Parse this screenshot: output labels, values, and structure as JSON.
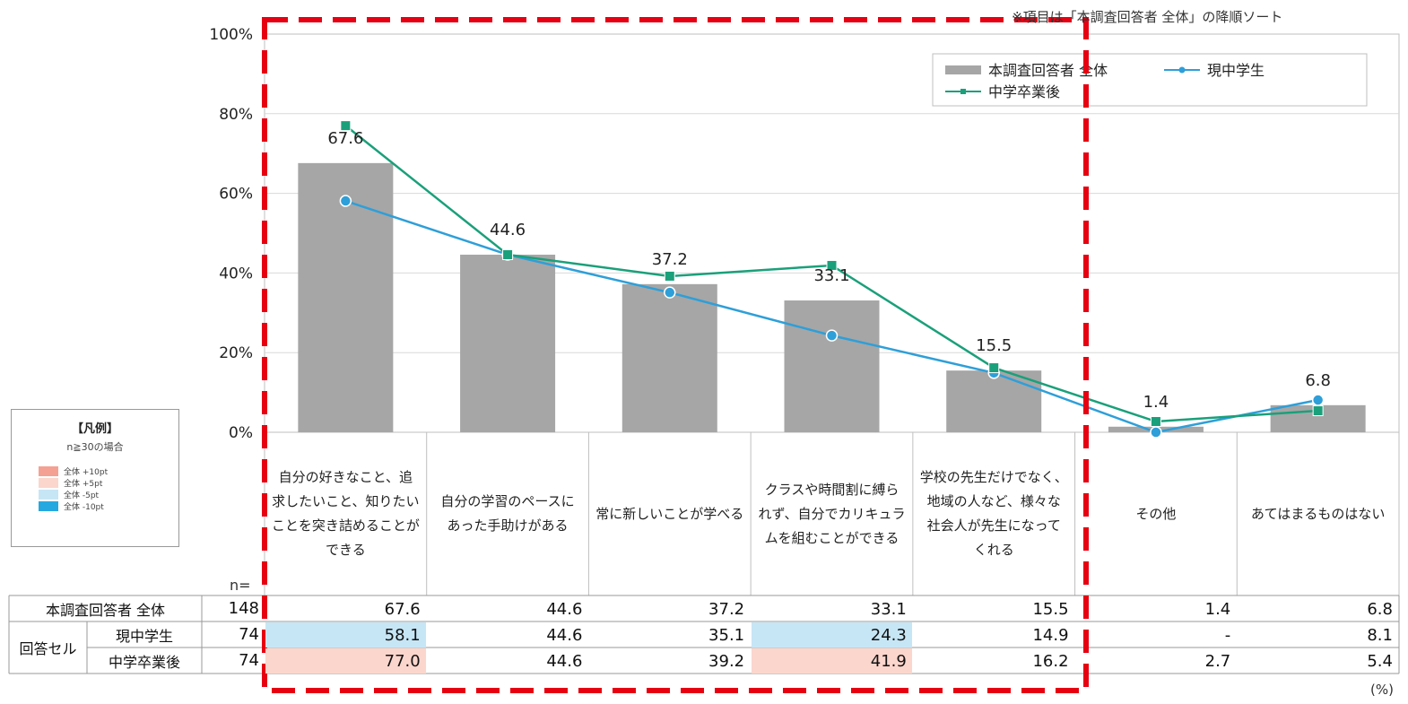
{
  "note": "※項目は「本調査回答者 全体」の降順ソート",
  "unit_label": "(%)",
  "n_label": "n=",
  "guide": {
    "title": "【凡例】",
    "condition": "n≧30の場合",
    "rows": [
      {
        "text": "全体 +10pt",
        "color": "#f4a193"
      },
      {
        "text": "全体 +5pt",
        "color": "#fbd6cd"
      },
      {
        "text": "全体 -5pt",
        "color": "#c6e6f5"
      },
      {
        "text": "全体 -10pt",
        "color": "#25a8e0"
      }
    ]
  },
  "chart_data": {
    "type": "bar",
    "categories": [
      "自分の好きなこと、追\n求したいこと、知りたい\nことを突き詰めることが\nできる",
      "自分の学習のペースに\nあった手助けがある",
      "常に新しいことが学べる",
      "クラスや時間割に縛ら\nれず、自分でカリキュラ\nムを組むことができる",
      "学校の先生だけでなく、\n地域の人など、様々な\n社会人が先生になって\nくれる",
      "その他",
      "あてはまるものはない"
    ],
    "yticks": [
      "100%",
      "80%",
      "60%",
      "40%",
      "20%",
      "0%"
    ],
    "ylim": [
      0,
      100
    ],
    "series": [
      {
        "name": "本調査回答者 全体",
        "kind": "bar",
        "color": "#a6a6a6",
        "values": [
          67.6,
          44.6,
          37.2,
          33.1,
          15.5,
          1.4,
          6.8
        ],
        "labels": [
          "67.6",
          "44.6",
          "37.2",
          "33.1",
          "15.5",
          "1.4",
          "6.8"
        ]
      },
      {
        "name": "現中学生",
        "kind": "line",
        "color": "#2e9fd8",
        "marker": "circle",
        "values": [
          58.1,
          44.6,
          35.1,
          24.3,
          14.9,
          0,
          8.1
        ]
      },
      {
        "name": "中学卒業後",
        "kind": "line",
        "color": "#1aa07a",
        "marker": "square",
        "values": [
          77.0,
          44.6,
          39.2,
          41.9,
          16.2,
          2.7,
          5.4
        ]
      }
    ]
  },
  "table": {
    "rows": [
      {
        "group": "",
        "label": "本調査回答者 全体",
        "n": "148",
        "cells": [
          "67.6",
          "44.6",
          "37.2",
          "33.1",
          "15.5",
          "1.4",
          "6.8"
        ],
        "fills": [
          "",
          "",
          "",
          "",
          "",
          "",
          ""
        ]
      },
      {
        "group": "回答セル",
        "label": "現中学生",
        "n": "74",
        "cells": [
          "58.1",
          "44.6",
          "35.1",
          "24.3",
          "14.9",
          "-",
          "8.1"
        ],
        "fills": [
          "#c6e6f5",
          "",
          "",
          "#c6e6f5",
          "",
          "",
          ""
        ]
      },
      {
        "group": "回答セル",
        "label": "中学卒業後",
        "n": "74",
        "cells": [
          "77.0",
          "44.6",
          "39.2",
          "41.9",
          "16.2",
          "2.7",
          "5.4"
        ],
        "fills": [
          "#fbd6cd",
          "",
          "",
          "#fbd6cd",
          "",
          "",
          ""
        ]
      }
    ]
  },
  "highlight": {
    "color": "#e60012"
  }
}
